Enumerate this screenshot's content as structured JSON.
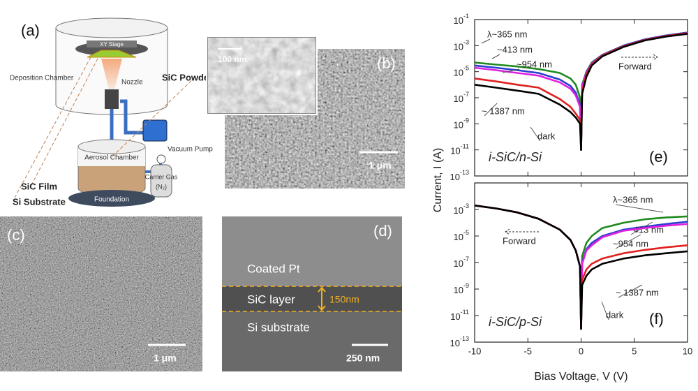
{
  "diagram": {
    "panel_label": "(a)",
    "xy_stage": "XY Stage",
    "deposition_chamber": "Deposition Chamber",
    "nozzle": "Nozzle",
    "sic_powder": "SiC Powder",
    "vacuum_pump": "Vacuum Pump",
    "aerosol_chamber": "Aerosol Chamber",
    "carrier_gas": "Carrier Gas",
    "carrier_gas_species": "(N₂)",
    "foundation": "Foundation",
    "sic_film": "SiC Film",
    "si_substrate": "Si Substrate"
  },
  "image_b": {
    "panel_label": "(b)",
    "inset_scale": "100 nm",
    "scale": "1 μm"
  },
  "image_c": {
    "panel_label": "(c)",
    "scale": "1 μm"
  },
  "image_d": {
    "panel_label": "(d)",
    "top_layer": "Coated Pt",
    "middle_layer": "SiC layer",
    "thickness": "150nm",
    "bottom_layer": "Si substrate",
    "scale": "250 nm"
  },
  "chart_data": [
    {
      "type": "line",
      "panel_label": "(e)",
      "device": "i-SiC/n-Si",
      "annotation": "Forward",
      "ylabel": "Current, I (A)",
      "log_y": true,
      "xlim": [
        -10,
        10
      ],
      "xticks": [
        -10,
        -5,
        0,
        5,
        10
      ],
      "ylim": [
        1e-13,
        0.1
      ],
      "yticks": [
        {
          "value": 1e-13,
          "label": "10",
          "exponent": "-13"
        },
        {
          "value": 1e-11,
          "label": "10",
          "exponent": "-11"
        },
        {
          "value": 1e-09,
          "label": "10",
          "exponent": "-9"
        },
        {
          "value": 1e-07,
          "label": "10",
          "exponent": "-7"
        },
        {
          "value": 1e-05,
          "label": "10",
          "exponent": "-5"
        },
        {
          "value": 0.001,
          "label": "10",
          "exponent": "-3"
        },
        {
          "value": 0.1,
          "label": "10",
          "exponent": "-1"
        }
      ],
      "x": [
        -10,
        -8,
        -6,
        -4,
        -2,
        -1,
        -0.5,
        -0.1,
        0,
        0.1,
        0.5,
        1,
        2,
        4,
        6,
        8,
        10
      ],
      "series": [
        {
          "name": "λ~365 nm",
          "color": "#1f8a1f",
          "values": [
            5e-05,
            3.5e-05,
            2.5e-05,
            1.6e-05,
            8e-06,
            3e-06,
            1e-06,
            1e-07,
            1e-11,
            1e-06,
            1e-05,
            5e-05,
            0.0002,
            0.001,
            0.003,
            0.006,
            0.01
          ]
        },
        {
          "name": "~413 nm",
          "color": "#2a3fd0",
          "values": [
            3e-05,
            2e-05,
            1.3e-05,
            8e-06,
            2.5e-06,
            8e-07,
            2.5e-07,
            3e-08,
            1e-11,
            8e-07,
            9e-06,
            4.5e-05,
            0.00019,
            0.001,
            0.003,
            0.006,
            0.01
          ]
        },
        {
          "name": "~954 nm",
          "color": "#e020e0",
          "values": [
            2e-05,
            1.3e-05,
            8e-06,
            5e-06,
            1.5e-06,
            5e-07,
            1.5e-07,
            2e-08,
            2e-11,
            7e-07,
            8e-06,
            4e-05,
            0.00018,
            0.0009,
            0.0028,
            0.0055,
            0.009
          ]
        },
        {
          "name": "~ 1387 nm",
          "color": "#e02020",
          "values": [
            3e-06,
            1.8e-06,
            1e-06,
            6e-07,
            8e-08,
            2e-08,
            6e-09,
            2e-09,
            1e-11,
            3e-07,
            6e-06,
            3.5e-05,
            0.00017,
            0.0009,
            0.0027,
            0.0055,
            0.009
          ]
        },
        {
          "name": "dark",
          "color": "#000000",
          "values": [
            1e-06,
            6e-07,
            3.5e-07,
            2e-07,
            3e-08,
            8e-09,
            3e-09,
            1e-09,
            1e-11,
            2e-07,
            4e-06,
            3e-05,
            0.00015,
            0.0008,
            0.0025,
            0.005,
            0.008
          ]
        }
      ]
    },
    {
      "type": "line",
      "panel_label": "(f)",
      "device": "i-SiC/p-Si",
      "annotation": "Forward",
      "xlabel": "Bias Voltage, V (V)",
      "log_y": true,
      "xlim": [
        -10,
        10
      ],
      "xticks": [
        -10,
        -5,
        0,
        5,
        10
      ],
      "ylim": [
        1e-13,
        0.1
      ],
      "yticks": [
        {
          "value": 1e-13,
          "label": "10",
          "exponent": "-13"
        },
        {
          "value": 1e-11,
          "label": "10",
          "exponent": "-11"
        },
        {
          "value": 1e-09,
          "label": "10",
          "exponent": "-9"
        },
        {
          "value": 1e-07,
          "label": "10",
          "exponent": "-7"
        },
        {
          "value": 1e-05,
          "label": "10",
          "exponent": "-5"
        },
        {
          "value": 0.001,
          "label": "10",
          "exponent": "-3"
        }
      ],
      "x": [
        -10,
        -8,
        -6,
        -4,
        -2,
        -1,
        -0.5,
        -0.1,
        0,
        0.1,
        0.5,
        1,
        2,
        4,
        6,
        8,
        10
      ],
      "series": [
        {
          "name": "λ~365 nm",
          "color": "#1f8a1f",
          "values": [
            0.002,
            0.0012,
            0.0006,
            0.0002,
            3e-05,
            5e-06,
            8e-07,
            5e-08,
            1e-12,
            3e-07,
            3e-06,
            1e-05,
            4e-05,
            0.0001,
            0.00018,
            0.00025,
            0.0003
          ]
        },
        {
          "name": "~413 nm",
          "color": "#2a3fd0",
          "values": [
            0.002,
            0.0012,
            0.0006,
            0.0002,
            3e-05,
            5e-06,
            8e-07,
            5e-08,
            1e-12,
            1e-07,
            1e-06,
            3e-06,
            1e-05,
            3e-05,
            5e-05,
            8e-05,
            0.00012
          ]
        },
        {
          "name": "~954 nm",
          "color": "#e020e0",
          "values": [
            0.002,
            0.0012,
            0.0006,
            0.0002,
            3e-05,
            5e-06,
            8e-07,
            5e-08,
            1e-12,
            8e-08,
            8e-07,
            2e-06,
            8e-06,
            2.5e-05,
            4e-05,
            6e-05,
            8e-05
          ]
        },
        {
          "name": "~ 1387 nm",
          "color": "#e02020",
          "values": [
            0.002,
            0.0012,
            0.0006,
            0.0002,
            3e-05,
            5e-06,
            8e-07,
            5e-08,
            1e-12,
            5e-09,
            3e-08,
            8e-08,
            2e-07,
            5e-07,
            9e-07,
            1.4e-06,
            2e-06
          ]
        },
        {
          "name": "dark",
          "color": "#000000",
          "values": [
            0.002,
            0.0012,
            0.0006,
            0.0002,
            3e-05,
            5e-06,
            8e-07,
            5e-08,
            1e-12,
            2e-09,
            1e-08,
            3e-08,
            8e-08,
            2e-07,
            3.5e-07,
            5e-07,
            7e-07
          ]
        }
      ]
    }
  ]
}
